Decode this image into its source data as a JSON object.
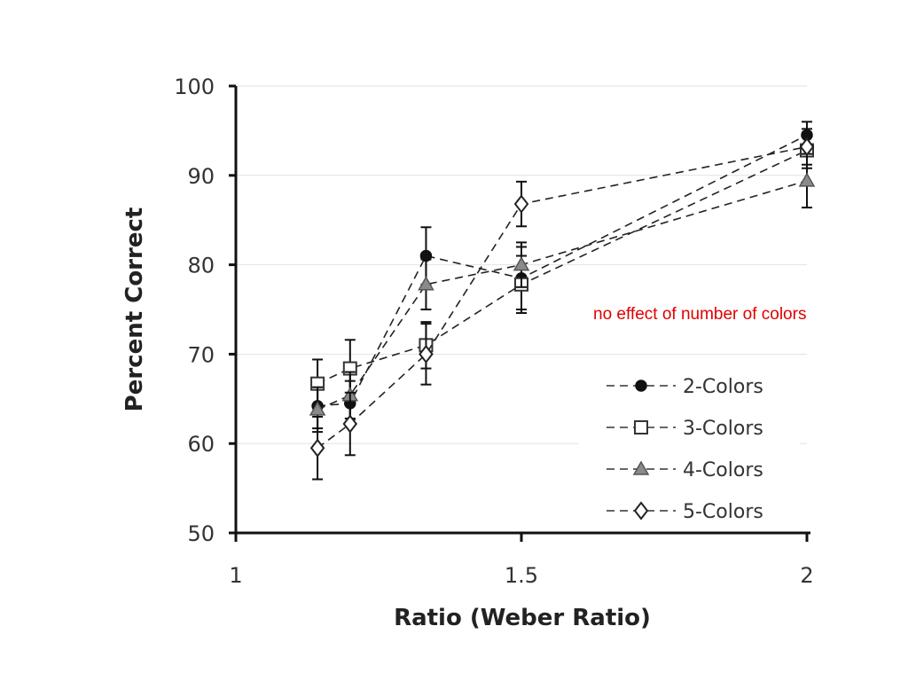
{
  "chart_data": {
    "type": "line",
    "title": "",
    "xlabel": "Ratio (Weber Ratio)",
    "ylabel": "Percent Correct",
    "xlim": [
      1,
      2
    ],
    "ylim": [
      50,
      100
    ],
    "xticks": [
      "1",
      "1.5",
      "2"
    ],
    "yticks": [
      "50",
      "60",
      "70",
      "80",
      "90",
      "100"
    ],
    "grid": "horizontal",
    "legend_position": "bottom-right",
    "annotation": {
      "text": "no effect of number of colors",
      "color": "#e00000"
    },
    "series": [
      {
        "name": "2-Colors",
        "marker": "filled-circle",
        "x": [
          1.143,
          1.2,
          1.333,
          1.5,
          2
        ],
        "y": [
          64.2,
          64.5,
          81.0,
          78.5,
          94.5
        ],
        "err": [
          2.5,
          2.5,
          3.2,
          3.5,
          1.5
        ]
      },
      {
        "name": "3-Colors",
        "marker": "open-square",
        "x": [
          1.143,
          1.2,
          1.333,
          1.5,
          2
        ],
        "y": [
          66.7,
          68.4,
          71.0,
          77.8,
          92.8
        ],
        "err": [
          2.7,
          3.2,
          2.6,
          3.2,
          2.0
        ]
      },
      {
        "name": "4-Colors",
        "marker": "gray-triangle",
        "x": [
          1.143,
          1.2,
          1.333,
          1.5,
          2
        ],
        "y": [
          63.8,
          65.4,
          77.8,
          80.0,
          89.4
        ],
        "err": [
          2.5,
          2.6,
          2.8,
          2.5,
          3.0
        ]
      },
      {
        "name": "5-Colors",
        "marker": "open-diamond",
        "x": [
          1.143,
          1.2,
          1.333,
          1.5,
          2
        ],
        "y": [
          59.5,
          62.2,
          70.0,
          86.8,
          93.2
        ],
        "err": [
          3.5,
          3.5,
          3.4,
          2.5,
          2.0
        ]
      }
    ]
  }
}
